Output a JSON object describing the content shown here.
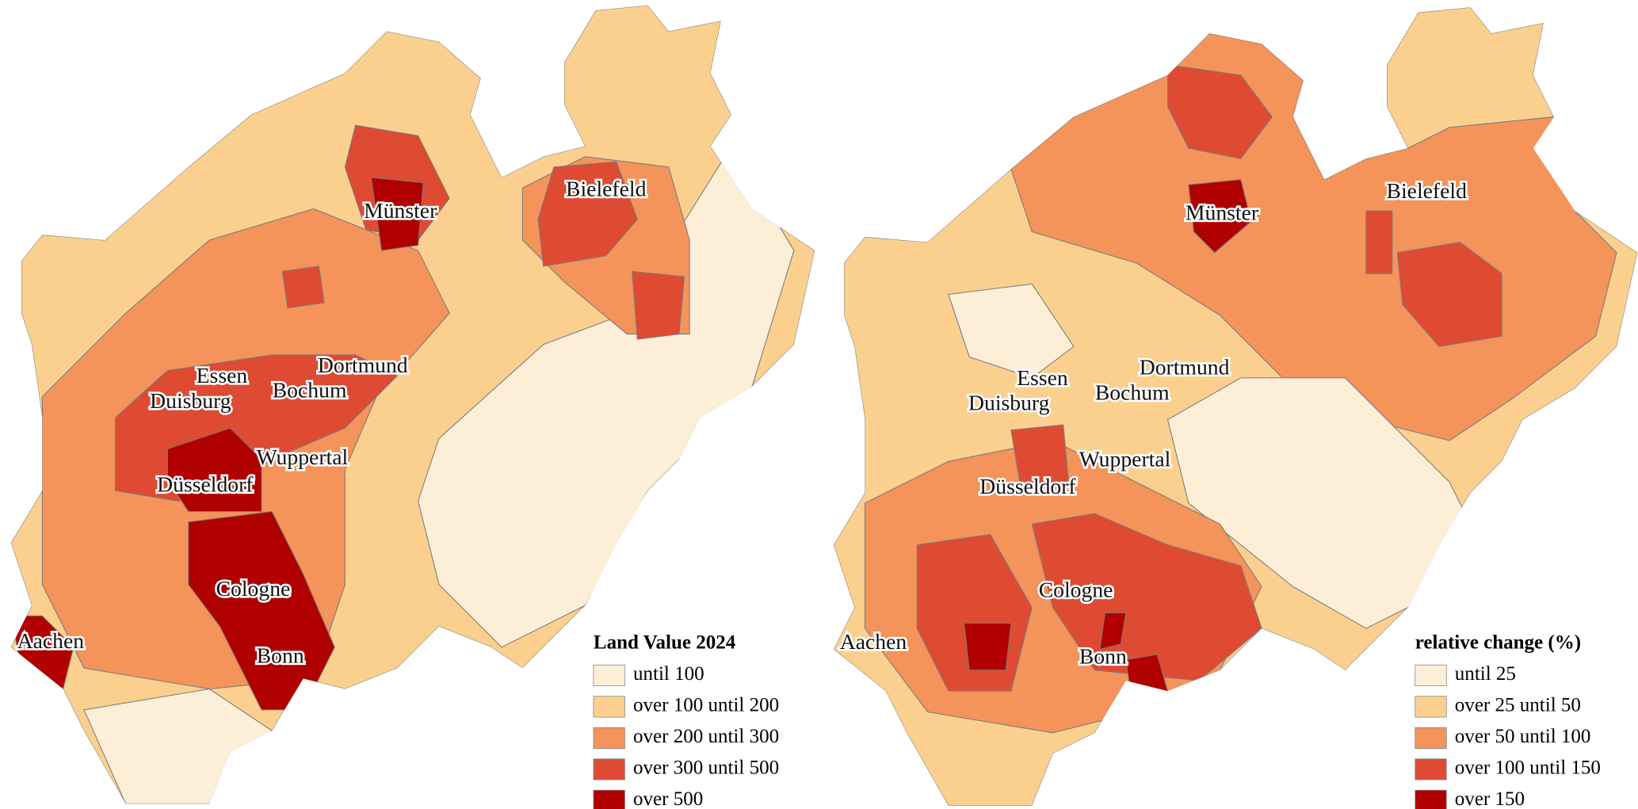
{
  "maps": [
    {
      "cities": [
        "Münster",
        "Bielefeld",
        "Essen",
        "Dortmund",
        "Duisburg",
        "Bochum",
        "Wuppertal",
        "Düsseldorf",
        "Cologne",
        "Aachen",
        "Bonn"
      ],
      "legend": {
        "title": "Land Value 2024",
        "items": [
          {
            "label": "until 100",
            "color": "#fdeed8"
          },
          {
            "label": "over 100 until 200",
            "color": "#fbd08f"
          },
          {
            "label": "over 200 until 300",
            "color": "#f4935a"
          },
          {
            "label": "over 300 until 500",
            "color": "#df4a33"
          },
          {
            "label": "over 500",
            "color": "#b00000"
          }
        ]
      }
    },
    {
      "cities": [
        "Münster",
        "Bielefeld",
        "Essen",
        "Dortmund",
        "Duisburg",
        "Bochum",
        "Wuppertal",
        "Düsseldorf",
        "Cologne",
        "Aachen",
        "Bonn"
      ],
      "legend": {
        "title": "relative change (%)",
        "items": [
          {
            "label": "until 25",
            "color": "#fdeed8"
          },
          {
            "label": "over 25 until 50",
            "color": "#fbd08f"
          },
          {
            "label": "over 50 until 100",
            "color": "#f4935a"
          },
          {
            "label": "over 100 until 150",
            "color": "#df4a33"
          },
          {
            "label": "over 150",
            "color": "#b00000"
          }
        ]
      }
    }
  ]
}
